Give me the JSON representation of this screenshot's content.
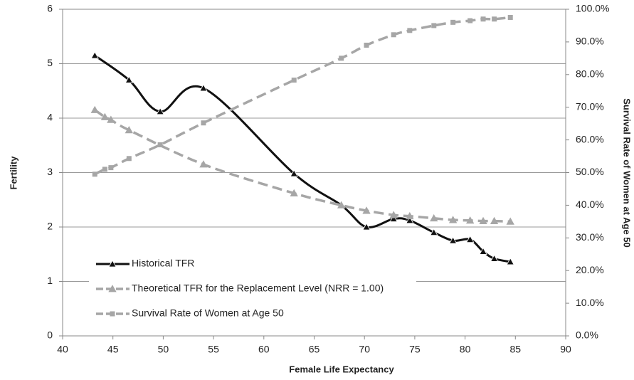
{
  "chart_data": {
    "type": "line",
    "x_label": "Female Life Expectancy",
    "y_label": "Fertility",
    "y2_label": "Survival Rate of Women at Age 50",
    "xlim": [
      40,
      90
    ],
    "xticks": [
      40,
      45,
      50,
      55,
      60,
      65,
      70,
      75,
      80,
      85,
      90
    ],
    "ylim": [
      0,
      6
    ],
    "yticks": [
      0,
      1,
      2,
      3,
      4,
      5,
      6
    ],
    "y2lim": [
      0,
      100
    ],
    "y2ticks": [
      {
        "value": 0,
        "label": "0.0%"
      },
      {
        "value": 10,
        "label": "10.0%"
      },
      {
        "value": 20,
        "label": "20.0%"
      },
      {
        "value": 30,
        "label": "30.0%"
      },
      {
        "value": 40,
        "label": "40.0%"
      },
      {
        "value": 50,
        "label": "50.0%"
      },
      {
        "value": 60,
        "label": "60.0%"
      },
      {
        "value": 70,
        "label": "70.0%"
      },
      {
        "value": 80,
        "label": "80.0%"
      },
      {
        "value": 90,
        "label": "90.0%"
      },
      {
        "value": 100,
        "label": "100.0%"
      }
    ],
    "grid": true,
    "series": [
      {
        "name": "Historical TFR",
        "color": "#111111",
        "marker": "triangle",
        "dashed": false,
        "x": [
          43.2,
          46.6,
          49.7,
          54.0,
          63.0,
          67.7,
          70.2,
          72.9,
          74.5,
          76.9,
          78.8,
          80.5,
          81.8,
          82.9,
          84.5
        ],
        "values": [
          5.15,
          4.7,
          4.12,
          4.55,
          2.98,
          2.4,
          2.0,
          2.15,
          2.12,
          1.9,
          1.75,
          1.77,
          1.55,
          1.42,
          1.36
        ]
      },
      {
        "name": "Theoretical TFR for the Replacement Level (NRR = 1.00)",
        "color": "#a6a6a6",
        "marker": "triangle",
        "dashed": true,
        "x": [
          43.2,
          44.2,
          44.8,
          46.6,
          54.0,
          63.0,
          67.7,
          70.2,
          72.9,
          74.5,
          76.9,
          78.8,
          80.5,
          81.8,
          82.9,
          84.5
        ],
        "values": [
          4.15,
          4.02,
          3.97,
          3.78,
          3.15,
          2.62,
          2.4,
          2.3,
          2.22,
          2.2,
          2.16,
          2.13,
          2.12,
          2.11,
          2.11,
          2.1
        ]
      },
      {
        "name": "Survival Rate of Women at Age 50",
        "color": "#a6a6a6",
        "marker": "square",
        "dashed": true,
        "axis": "y2",
        "x": [
          43.2,
          44.2,
          44.8,
          46.6,
          49.7,
          54.0,
          63.0,
          67.7,
          70.2,
          72.9,
          74.5,
          76.9,
          78.8,
          80.5,
          81.8,
          82.9,
          84.5
        ],
        "values": [
          49.5,
          51,
          51.5,
          54.3,
          58.5,
          65.2,
          78.3,
          85,
          89,
          92.2,
          93.5,
          95,
          96,
          96.5,
          97,
          97,
          97.5
        ]
      }
    ]
  }
}
